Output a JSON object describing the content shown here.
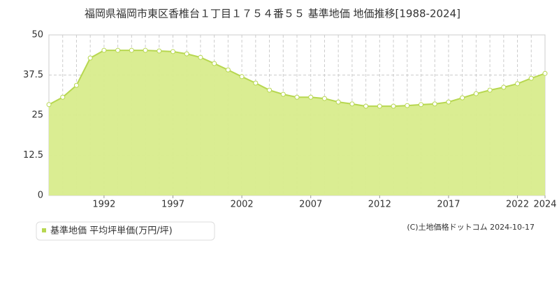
{
  "chart_data": {
    "type": "area",
    "title": "福岡県福岡市東区香椎台１丁目１７５４番５５ 基準地価 地価推移[1988-2024]",
    "x": [
      1988,
      1989,
      1990,
      1991,
      1992,
      1993,
      1994,
      1995,
      1996,
      1997,
      1998,
      1999,
      2000,
      2001,
      2002,
      2003,
      2004,
      2005,
      2006,
      2007,
      2008,
      2009,
      2010,
      2011,
      2012,
      2013,
      2014,
      2015,
      2016,
      2017,
      2018,
      2019,
      2020,
      2021,
      2022,
      2023,
      2024
    ],
    "series": [
      {
        "name": "基準地価 平均坪単価(万円/坪)",
        "color": "#d8ec8c",
        "values": [
          28.3,
          30.6,
          34.3,
          42.8,
          45.2,
          45.2,
          45.2,
          45.2,
          45,
          44.8,
          44.1,
          43,
          41.1,
          39.1,
          37,
          35,
          32.8,
          31.5,
          30.6,
          30.6,
          30.2,
          29.1,
          28.5,
          27.8,
          27.8,
          27.8,
          28,
          28.3,
          28.5,
          29.1,
          30.4,
          31.7,
          32.8,
          33.7,
          34.8,
          36.5,
          38
        ]
      }
    ],
    "xlim": [
      1988,
      2024
    ],
    "xticks": [
      1992,
      1997,
      2002,
      2007,
      2012,
      2017,
      2022,
      2024
    ],
    "ylim": [
      0,
      50
    ],
    "yticks": [
      0,
      12.5,
      25,
      37.5,
      50
    ],
    "grid": true,
    "source": "(C)土地価格ドットコム 2024-10-17"
  }
}
